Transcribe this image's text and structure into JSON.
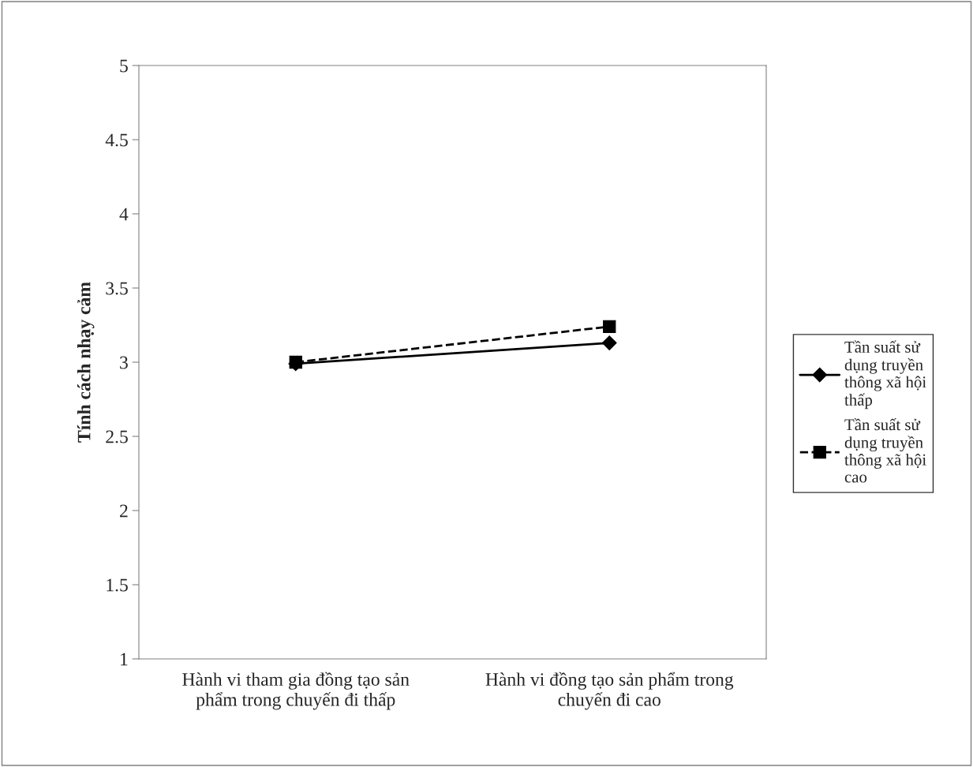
{
  "chart_data": {
    "type": "line",
    "ylabel": "Tính cách nhạy cảm",
    "categories": [
      "Hành vi tham gia đồng tạo sản phẩm trong chuyến đi thấp",
      "Hành vi đồng tạo sản phẩm trong chuyến đi cao"
    ],
    "series": [
      {
        "name": "Tần suất sử dụng truyền thông xã hội thấp",
        "color": "#000000",
        "values": [
          2.99,
          3.13
        ],
        "marker": "diamond",
        "line_style": "solid"
      },
      {
        "name": "Tần suất sử dụng truyền thông xã hội cao",
        "color": "#000000",
        "values": [
          3.0,
          3.24
        ],
        "marker": "square",
        "line_style": "dashed"
      }
    ],
    "ylim": [
      1,
      5
    ],
    "yticks": [
      1,
      1.5,
      2,
      2.5,
      3,
      3.5,
      4,
      4.5,
      5
    ],
    "grid": false,
    "legend": "right"
  }
}
